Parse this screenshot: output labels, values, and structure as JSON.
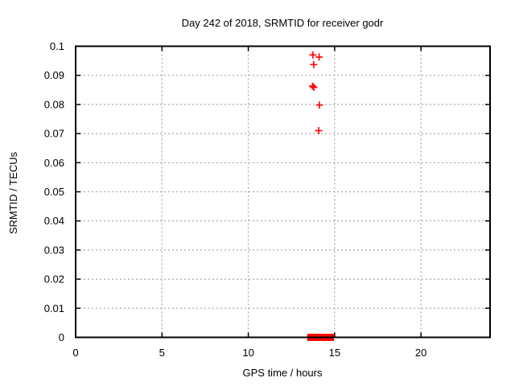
{
  "chart_data": {
    "type": "scatter",
    "title": "Day 242 of 2018, SRMTID for receiver godr",
    "xlabel": "GPS time / hours",
    "ylabel": "SRMTID / TECUs",
    "xlim": [
      0,
      24
    ],
    "ylim": [
      0,
      0.1
    ],
    "xticks": [
      0,
      5,
      10,
      15,
      20
    ],
    "xtick_labels": [
      "0",
      "5",
      "10",
      "15",
      "20"
    ],
    "yticks": [
      0,
      0.01,
      0.02,
      0.03,
      0.04,
      0.05,
      0.06,
      0.07,
      0.08,
      0.09,
      0.1
    ],
    "ytick_labels": [
      "0",
      "0.01",
      "0.02",
      "0.03",
      "0.04",
      "0.05",
      "0.06",
      "0.07",
      "0.08",
      "0.09",
      "0.1"
    ],
    "grid": true,
    "legend": "none",
    "marker": {
      "shape": "plus",
      "color": "#ff0000",
      "size": 9
    },
    "series": [
      {
        "name": "SRMTID",
        "points": [
          {
            "x": 13.74,
            "y": 0.097
          },
          {
            "x": 14.1,
            "y": 0.0963
          },
          {
            "x": 13.79,
            "y": 0.0937
          },
          {
            "x": 13.72,
            "y": 0.0863
          },
          {
            "x": 13.8,
            "y": 0.0859
          },
          {
            "x": 14.12,
            "y": 0.0798
          },
          {
            "x": 14.08,
            "y": 0.071
          }
        ]
      }
    ],
    "zero_value_runs": [
      {
        "x_start": 13.45,
        "x_end": 14.15,
        "y": 0
      },
      {
        "x_start": 14.22,
        "x_end": 14.92,
        "y": 0
      }
    ]
  },
  "colors": {
    "background": "#ffffff",
    "border": "#000000",
    "grid": "#a8a8a8",
    "text": "#000000",
    "marker": "#ff0000"
  }
}
